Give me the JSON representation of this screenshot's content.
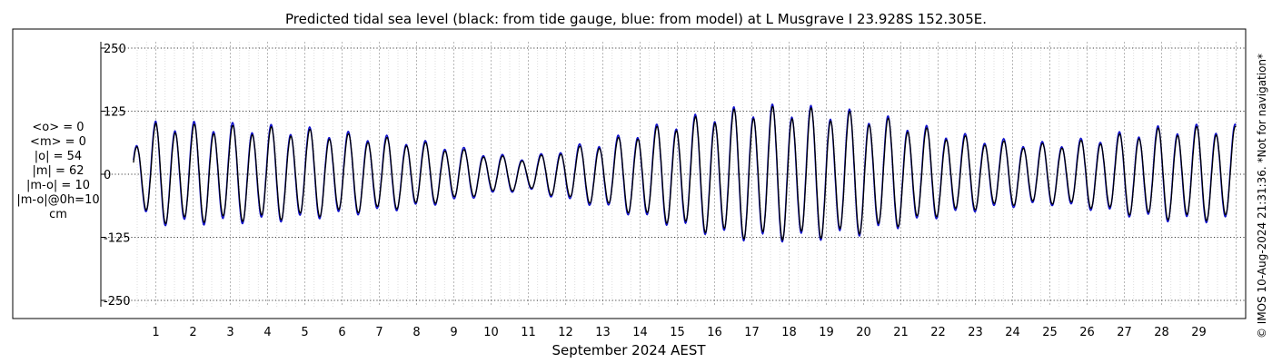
{
  "chart_data": {
    "type": "line",
    "title": "Predicted tidal sea level (black: from tide gauge, blue: from model) at L Musgrave I 23.928S 152.305E.",
    "xlabel": "September 2024 AEST",
    "ylabel": "",
    "x_ticks": [
      "1",
      "2",
      "3",
      "4",
      "5",
      "6",
      "7",
      "8",
      "9",
      "10",
      "11",
      "12",
      "13",
      "14",
      "15",
      "16",
      "17",
      "18",
      "19",
      "20",
      "21",
      "22",
      "23",
      "24",
      "25",
      "26",
      "27",
      "28",
      "29"
    ],
    "y_ticks": [
      "250",
      "125",
      "0",
      "-125",
      "-250"
    ],
    "y_tick_values": [
      250,
      125,
      0,
      -125,
      -250
    ],
    "xlim": [
      0.4,
      30.0
    ],
    "ylim": [
      -280,
      280
    ],
    "grid": true,
    "series": [
      {
        "name": "from tide gauge",
        "color": "#000000",
        "amplitude_by_day": [
          [
            0.4,
            55
          ],
          [
            1,
            92
          ],
          [
            2,
            90
          ],
          [
            3,
            88
          ],
          [
            4,
            86
          ],
          [
            5,
            82
          ],
          [
            6,
            74
          ],
          [
            7,
            68
          ],
          [
            8,
            60
          ],
          [
            9,
            48
          ],
          [
            10,
            35
          ],
          [
            11,
            28
          ],
          [
            12,
            46
          ],
          [
            13,
            58
          ],
          [
            14,
            78
          ],
          [
            15,
            96
          ],
          [
            16,
            112
          ],
          [
            17,
            122
          ],
          [
            18,
            122
          ],
          [
            19,
            118
          ],
          [
            20,
            110
          ],
          [
            21,
            96
          ],
          [
            22,
            78
          ],
          [
            23,
            66
          ],
          [
            24,
            58
          ],
          [
            25,
            55
          ],
          [
            26,
            62
          ],
          [
            27,
            74
          ],
          [
            28,
            84
          ],
          [
            29,
            86
          ],
          [
            30,
            86
          ]
        ]
      },
      {
        "name": "from model",
        "color": "#1010cc",
        "amplitude_by_day": [
          [
            0.4,
            58
          ],
          [
            1,
            96
          ],
          [
            2,
            95
          ],
          [
            3,
            93
          ],
          [
            4,
            90
          ],
          [
            5,
            86
          ],
          [
            6,
            78
          ],
          [
            7,
            72
          ],
          [
            8,
            63
          ],
          [
            9,
            52
          ],
          [
            10,
            38
          ],
          [
            11,
            30
          ],
          [
            12,
            50
          ],
          [
            13,
            62
          ],
          [
            14,
            82
          ],
          [
            15,
            100
          ],
          [
            16,
            116
          ],
          [
            17,
            126
          ],
          [
            18,
            126
          ],
          [
            19,
            122
          ],
          [
            20,
            114
          ],
          [
            21,
            100
          ],
          [
            22,
            82
          ],
          [
            23,
            70
          ],
          [
            24,
            62
          ],
          [
            25,
            58
          ],
          [
            26,
            66
          ],
          [
            27,
            78
          ],
          [
            28,
            88
          ],
          [
            29,
            90
          ],
          [
            30,
            90
          ]
        ]
      }
    ]
  },
  "stats": {
    "lines": [
      "<o> = 0",
      "<m> = 0",
      "|o| = 54",
      "|m| = 62",
      "|m-o| = 10",
      "|m-o|@0h=10",
      "cm"
    ]
  },
  "side_note": "© IMOS 10-Aug-2024 21:31:36. *Not for navigation*",
  "colors": {
    "grid": "#b0b0b0",
    "axis": "#000000"
  }
}
